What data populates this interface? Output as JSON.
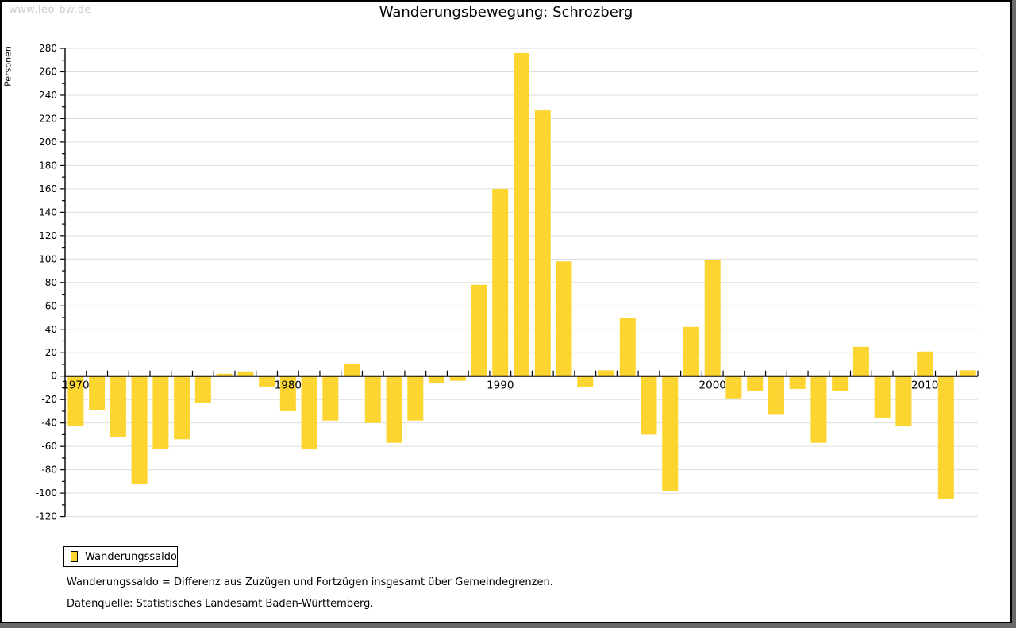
{
  "watermark": "www.leo-bw.de",
  "title": "Wanderungsbewegung: Schrozberg",
  "y_axis_label": "Personen",
  "legend": {
    "label": "Wanderungssaldo"
  },
  "notes": {
    "definition": "Wanderungssaldo = Differenz aus Zuzügen und Fortzügen insgesamt über Gemeindegrenzen.",
    "source": "Datenquelle: Statistisches Landesamt Baden-Württemberg."
  },
  "colors": {
    "bar": "#FCD530",
    "grid": "#DDDDDD",
    "axis": "#000000",
    "text": "#000000",
    "watermark": "#CCCCCC"
  },
  "chart_data": {
    "type": "bar",
    "title": "Wanderungsbewegung: Schrozberg",
    "xlabel": "",
    "ylabel": "Personen",
    "series_name": "Wanderungssaldo",
    "x": [
      1970,
      1971,
      1972,
      1973,
      1974,
      1975,
      1976,
      1977,
      1978,
      1979,
      1980,
      1981,
      1982,
      1983,
      1984,
      1985,
      1986,
      1987,
      1988,
      1989,
      1990,
      1991,
      1992,
      1993,
      1994,
      1995,
      1996,
      1997,
      1998,
      1999,
      2000,
      2001,
      2002,
      2003,
      2004,
      2005,
      2006,
      2007,
      2008,
      2009,
      2010,
      2011,
      2012
    ],
    "values": [
      -43,
      -29,
      -52,
      -92,
      -62,
      -54,
      -23,
      2,
      4,
      -9,
      -30,
      -62,
      -38,
      10,
      -40,
      -57,
      -38,
      -6,
      -4,
      78,
      160,
      276,
      227,
      98,
      -9,
      5,
      50,
      -50,
      -98,
      42,
      99,
      -19,
      -13,
      -33,
      -11,
      -57,
      -13,
      25,
      -36,
      -43,
      21,
      -105,
      5
    ],
    "ylim": [
      -120,
      280
    ],
    "ytick_step": 20,
    "ytick_minor_step": 10,
    "xtick_labels": [
      1970,
      1980,
      1990,
      2000,
      2010
    ],
    "grid": true,
    "legend_position": "bottom-left"
  }
}
